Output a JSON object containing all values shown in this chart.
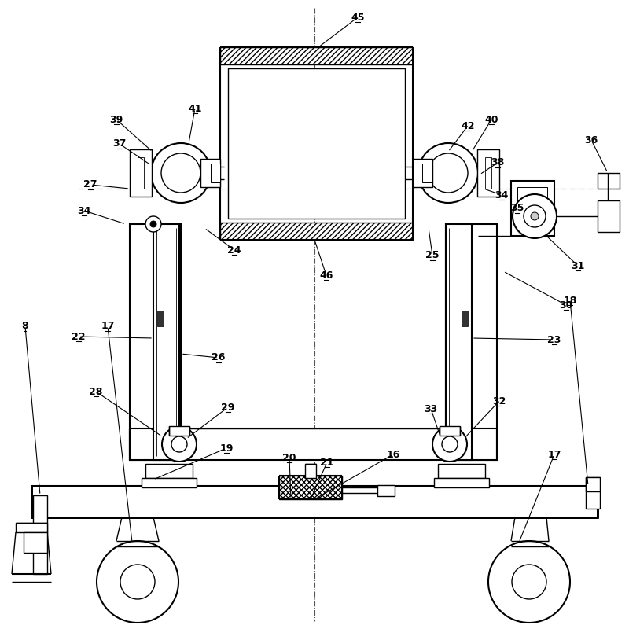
{
  "bg_color": "#ffffff",
  "line_color": "#000000",
  "fig_width": 8.0,
  "fig_height": 8.14,
  "dpi": 100
}
